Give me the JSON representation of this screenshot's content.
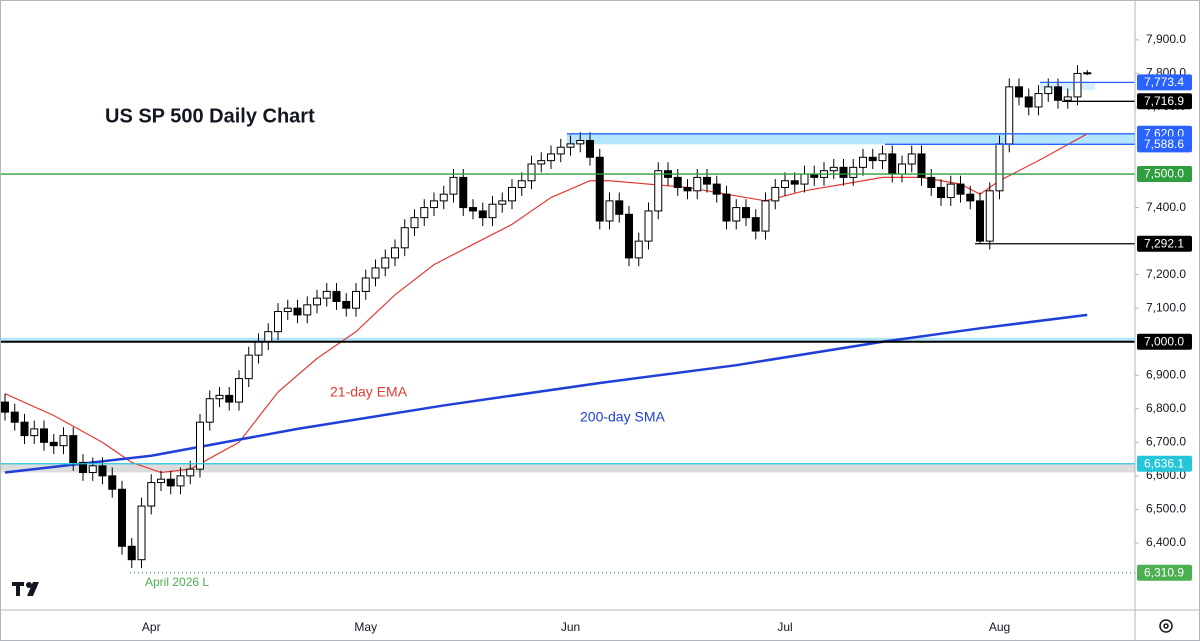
{
  "chart_data": {
    "type": "candlestick",
    "title": "US SP 500 Daily Chart",
    "categories": [
      null,
      null,
      null,
      null,
      null,
      null,
      null,
      null,
      null,
      null,
      null,
      null,
      null,
      null,
      null,
      "Apr",
      null,
      null,
      null,
      null,
      null,
      null,
      null,
      null,
      null,
      null,
      null,
      null,
      null,
      null,
      null,
      null,
      null,
      null,
      null,
      null,
      null,
      "May",
      null,
      null,
      null,
      null,
      null,
      null,
      null,
      null,
      null,
      null,
      null,
      null,
      null,
      null,
      null,
      null,
      null,
      null,
      null,
      null,
      "Jun",
      null,
      null,
      null,
      null,
      null,
      null,
      null,
      null,
      null,
      null,
      null,
      null,
      null,
      null,
      null,
      null,
      null,
      null,
      null,
      null,
      null,
      "Jul",
      null,
      null,
      null,
      null,
      null,
      null,
      null,
      null,
      null,
      null,
      null,
      null,
      null,
      null,
      null,
      null,
      null,
      null,
      null,
      null,
      null,
      "Aug",
      null,
      null,
      null,
      null,
      null,
      null,
      null,
      null,
      null
    ],
    "open": [
      6820,
      6790,
      6760,
      6720,
      6740,
      6700,
      6690,
      6720,
      6640,
      6610,
      6630,
      6600,
      6560,
      6390,
      6350,
      6510,
      6580,
      6590,
      6570,
      6600,
      6620,
      6760,
      6830,
      6840,
      6820,
      6890,
      6960,
      7000,
      7030,
      7090,
      7100,
      7080,
      7110,
      7130,
      7150,
      7120,
      7100,
      7150,
      7190,
      7220,
      7250,
      7280,
      7340,
      7370,
      7400,
      7420,
      7440,
      7490,
      7400,
      7390,
      7370,
      7410,
      7420,
      7460,
      7480,
      7530,
      7540,
      7560,
      7580,
      7590,
      7600,
      7550,
      7360,
      7420,
      7380,
      7250,
      7300,
      7390,
      7510,
      7490,
      7460,
      7450,
      7490,
      7470,
      7440,
      7360,
      7400,
      7370,
      7330,
      7420,
      7460,
      7480,
      7470,
      7500,
      7490,
      7510,
      7520,
      7490,
      7520,
      7550,
      7540,
      7560,
      7500,
      7530,
      7560,
      7490,
      7460,
      7430,
      7470,
      7440,
      7420,
      7300,
      7450,
      7590,
      7760,
      7730,
      7700,
      7740,
      7760,
      7720,
      7730,
      7800
    ],
    "high": [
      6845,
      6815,
      6785,
      6765,
      6765,
      6725,
      6745,
      6745,
      6665,
      6655,
      6655,
      6625,
      6585,
      6415,
      6535,
      6605,
      6615,
      6615,
      6625,
      6645,
      6785,
      6855,
      6865,
      6865,
      6915,
      6985,
      7025,
      7055,
      7115,
      7125,
      7125,
      7135,
      7155,
      7175,
      7175,
      7145,
      7175,
      7215,
      7245,
      7275,
      7305,
      7365,
      7395,
      7425,
      7445,
      7465,
      7515,
      7515,
      7425,
      7415,
      7435,
      7445,
      7485,
      7505,
      7555,
      7565,
      7585,
      7605,
      7615,
      7625,
      7625,
      7575,
      7445,
      7445,
      7405,
      7325,
      7415,
      7535,
      7535,
      7515,
      7485,
      7515,
      7515,
      7495,
      7465,
      7425,
      7425,
      7395,
      7445,
      7485,
      7505,
      7505,
      7525,
      7525,
      7535,
      7545,
      7545,
      7545,
      7575,
      7575,
      7585,
      7585,
      7555,
      7585,
      7585,
      7515,
      7485,
      7495,
      7495,
      7465,
      7445,
      7475,
      7615,
      7785,
      7785,
      7755,
      7765,
      7785,
      7785,
      7755,
      7825,
      7810
    ],
    "low": [
      6765,
      6735,
      6695,
      6695,
      6675,
      6665,
      6665,
      6615,
      6585,
      6585,
      6575,
      6535,
      6365,
      6325,
      6325,
      6485,
      6555,
      6545,
      6545,
      6575,
      6595,
      6735,
      6805,
      6795,
      6795,
      6865,
      6935,
      6975,
      7005,
      7065,
      7055,
      7055,
      7085,
      7105,
      7095,
      7075,
      7075,
      7125,
      7165,
      7195,
      7225,
      7255,
      7315,
      7345,
      7375,
      7395,
      7415,
      7375,
      7365,
      7345,
      7345,
      7385,
      7395,
      7435,
      7455,
      7505,
      7515,
      7535,
      7555,
      7565,
      7525,
      7335,
      7335,
      7355,
      7225,
      7225,
      7275,
      7365,
      7465,
      7435,
      7425,
      7425,
      7445,
      7415,
      7335,
      7335,
      7345,
      7305,
      7305,
      7395,
      7435,
      7445,
      7445,
      7465,
      7465,
      7485,
      7465,
      7465,
      7495,
      7515,
      7515,
      7475,
      7475,
      7505,
      7465,
      7435,
      7405,
      7405,
      7415,
      7395,
      7292,
      7275,
      7425,
      7565,
      7705,
      7675,
      7675,
      7715,
      7695,
      7695,
      7705,
      7795
    ],
    "close": [
      6790,
      6760,
      6720,
      6740,
      6700,
      6690,
      6720,
      6640,
      6610,
      6630,
      6600,
      6560,
      6390,
      6350,
      6510,
      6580,
      6590,
      6570,
      6600,
      6620,
      6760,
      6830,
      6840,
      6820,
      6890,
      6960,
      7000,
      7030,
      7090,
      7100,
      7080,
      7110,
      7130,
      7150,
      7120,
      7100,
      7150,
      7190,
      7220,
      7250,
      7280,
      7340,
      7370,
      7400,
      7420,
      7440,
      7490,
      7400,
      7390,
      7370,
      7410,
      7420,
      7460,
      7480,
      7530,
      7540,
      7560,
      7580,
      7590,
      7600,
      7550,
      7360,
      7420,
      7380,
      7250,
      7300,
      7390,
      7510,
      7490,
      7460,
      7450,
      7490,
      7470,
      7440,
      7360,
      7400,
      7370,
      7330,
      7420,
      7460,
      7480,
      7470,
      7500,
      7490,
      7510,
      7520,
      7490,
      7520,
      7550,
      7540,
      7560,
      7500,
      7530,
      7560,
      7490,
      7460,
      7430,
      7470,
      7440,
      7420,
      7300,
      7450,
      7590,
      7760,
      7730,
      7700,
      7740,
      7760,
      7720,
      7730,
      7800,
      7802
    ],
    "up_color": "#ffffff",
    "down_color": "#000000",
    "ylim": [
      6200,
      8019
    ],
    "yticks": [
      {
        "value": 6400,
        "label": "6,400.0"
      },
      {
        "value": 6500,
        "label": "6,500.0"
      },
      {
        "value": 6600,
        "label": "6,600.0"
      },
      {
        "value": 6700,
        "label": "6,700.0"
      },
      {
        "value": 6800,
        "label": "6,800.0"
      },
      {
        "value": 6900,
        "label": "6,900.0"
      },
      {
        "value": 7100,
        "label": "7,100.0"
      },
      {
        "value": 7200,
        "label": "7,200.0"
      },
      {
        "value": 7400,
        "label": "7,400.0"
      },
      {
        "value": 7700,
        "label": "7,700.0"
      },
      {
        "value": 7800,
        "label": "7,800.0"
      },
      {
        "value": 7900,
        "label": "7,900.0"
      }
    ],
    "overlays": [
      {
        "name": "21-day EMA",
        "color": "#e53935",
        "x": [
          0,
          5,
          10,
          13,
          16,
          19,
          24,
          28,
          32,
          36,
          40,
          44,
          48,
          52,
          56,
          60,
          62,
          66,
          70,
          74,
          78,
          82,
          86,
          90,
          94,
          98,
          100,
          102,
          106,
          111
        ],
        "values": [
          6845,
          6780,
          6700,
          6640,
          6610,
          6620,
          6700,
          6850,
          6950,
          7030,
          7140,
          7230,
          7290,
          7350,
          7430,
          7480,
          7480,
          7470,
          7460,
          7440,
          7420,
          7450,
          7470,
          7490,
          7490,
          7470,
          7440,
          7480,
          7540,
          7620
        ]
      },
      {
        "name": "200-day SMA",
        "color": "#1e3fd8",
        "x": [
          0,
          15,
          30,
          45,
          61,
          75,
          90,
          100,
          111
        ],
        "values": [
          6610,
          6660,
          6740,
          6810,
          6877,
          6930,
          7000,
          7040,
          7080
        ]
      }
    ],
    "levels": [
      {
        "value": 7773.4,
        "label": "7,773.4",
        "color": "#2962ff"
      },
      {
        "value": 7716.9,
        "label": "7,716.9",
        "color": "#000000"
      },
      {
        "value": 7620.0,
        "label": "7,620.0",
        "color": "#2962ff"
      },
      {
        "value": 7588.6,
        "label": "7,588.6",
        "color": "#2962ff"
      },
      {
        "value": 7500.0,
        "label": "7,500.0",
        "color": "#2e9e3e"
      },
      {
        "value": 7292.1,
        "label": "7,292.1",
        "color": "#000000"
      },
      {
        "value": 7000.0,
        "label": "7,000.0",
        "color": "#000000"
      },
      {
        "value": 6636.1,
        "label": "6,636.1",
        "color": "#26c6da"
      },
      {
        "value": 6310.9,
        "label": "6,310.9",
        "color": "#4caf50"
      }
    ],
    "zones": [
      {
        "from": 7588.6,
        "to": 7620.0,
        "color": "#b3e5fc"
      },
      {
        "from": 7000.0,
        "to": 7012.0,
        "color": "#b3e5fc"
      },
      {
        "from": 6610.0,
        "to": 6636.1,
        "color": "#dcdcdc"
      },
      {
        "from": 7750.0,
        "to": 7773.4,
        "color": "#d6effb"
      }
    ],
    "annotations": [
      {
        "text": "April 2026 L",
        "color": "#4caf50"
      }
    ]
  }
}
